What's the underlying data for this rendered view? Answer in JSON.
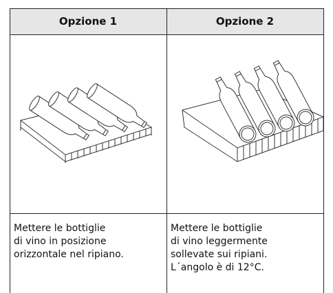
{
  "table": {
    "header": [
      "Opzione 1",
      "Opzione 2"
    ],
    "rows": [
      [
        [
          "Mettere le bottiglie",
          "di vino in posizione",
          "orizzontale nel ripiano."
        ],
        [
          "Mettere le bottiglie",
          "di vino leggermente",
          "sollevate sui ripiani.",
          "L´angolo è di 12°C."
        ]
      ]
    ]
  }
}
